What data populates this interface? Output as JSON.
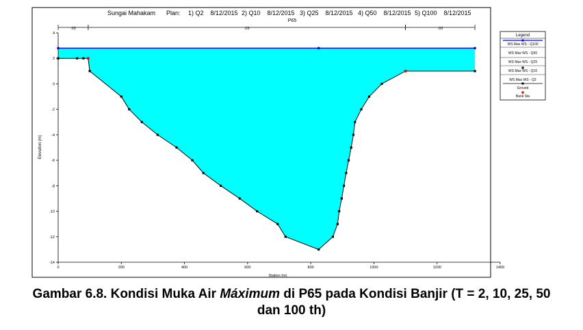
{
  "header": {
    "river": "Sungai Mahakam",
    "plan_label": "Plan:",
    "plans": [
      "1) Q2    8/12/2015",
      "2) Q10    8/12/2015",
      "3) Q25    8/12/2015",
      "4) Q50    8/12/2015",
      "5) Q100    8/12/2015"
    ],
    "section": "P65"
  },
  "manning": [
    ".03",
    ".03",
    ".03"
  ],
  "legend": {
    "title": "Legend",
    "items": [
      "WS Max WS - Q100",
      "WS Max WS - Q50",
      "WS Max WS - Q25",
      "WS Max WS - Q10",
      "WS Max WS - Q2",
      "Ground",
      "Bank Sta"
    ]
  },
  "colors": {
    "water": "#00ffff",
    "ws_line": "#0000ff",
    "ground": "#000000",
    "bank": "#ff0000"
  },
  "caption": {
    "part1": "Gambar 6.8. Kondisi Muka Air ",
    "italic": "Máximum",
    "part2": " di P65 pada Kondisi Banjir (T = 2, 10, 25, 50",
    "line2": "dan 100 th)"
  },
  "chart_data": {
    "type": "area",
    "xlabel": "Station (m)",
    "ylabel": "Elevation (m)",
    "xlim": [
      0,
      1400
    ],
    "ylim": [
      -14,
      4
    ],
    "xticks": [
      0,
      200,
      400,
      600,
      800,
      1000,
      1200,
      1400
    ],
    "yticks": [
      4,
      2,
      0,
      -2,
      -4,
      -6,
      -8,
      -10,
      -12,
      -14
    ],
    "water_surface_elevation": 2.8,
    "ground": {
      "x": [
        0,
        60,
        80,
        95,
        100,
        200,
        225,
        265,
        315,
        375,
        425,
        460,
        515,
        575,
        630,
        695,
        720,
        825,
        870,
        885,
        890,
        898,
        905,
        912,
        920,
        928,
        935,
        940,
        960,
        985,
        1025,
        1100,
        1320
      ],
      "y": [
        2,
        2,
        2,
        2,
        1,
        -1,
        -2,
        -3,
        -4,
        -5,
        -6,
        -7,
        -8,
        -9,
        -10,
        -11,
        -12,
        -13,
        -12,
        -11,
        -10,
        -9,
        -8,
        -7,
        -6,
        -5,
        -4,
        -3,
        -2,
        -1,
        0,
        1,
        1
      ]
    },
    "bank_stations": [
      {
        "x": 95,
        "y": 2
      },
      {
        "x": 1100,
        "y": 1
      }
    ],
    "ws_markers_x": [
      0,
      825,
      1320
    ]
  }
}
